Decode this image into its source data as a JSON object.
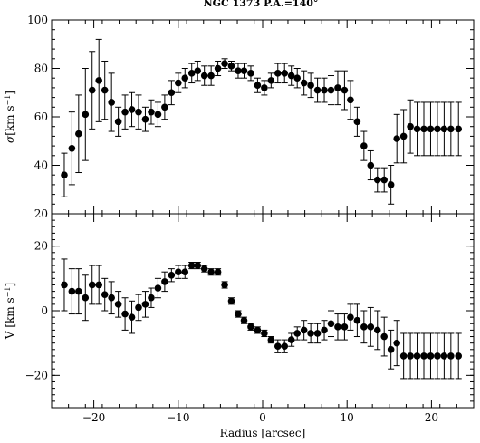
{
  "chart_data": [
    {
      "type": "scatter",
      "panel": "top",
      "title": "NGC 1373   P.A.=140°",
      "ylabel_prefix": "σ",
      "ylabel_unit": "[km s",
      "ylabel_exp": "−1",
      "ylabel_close": "]",
      "xlim": [
        -25,
        25
      ],
      "ylim": [
        20,
        100
      ],
      "yticks": [
        20,
        40,
        60,
        80,
        100
      ],
      "xticks": [
        -20,
        -10,
        0,
        10,
        20
      ],
      "grid": false,
      "series": [
        {
          "x": [
            -23.5,
            -22.6,
            -21.8,
            -21.0,
            -20.2,
            -19.4,
            -18.7,
            -17.9,
            -17.1,
            -16.3,
            -15.5,
            -14.7,
            -13.9,
            -13.2,
            -12.4,
            -11.6,
            -10.8,
            -10.0,
            -9.2,
            -8.4,
            -7.7,
            -6.9,
            -6.1,
            -5.3,
            -4.5,
            -3.7,
            -2.9,
            -2.2,
            -1.4,
            -0.6,
            0.2,
            1.0,
            1.8,
            2.6,
            3.4,
            4.1,
            4.9,
            5.7,
            6.5,
            7.3,
            8.1,
            8.9,
            9.7,
            10.4,
            11.2,
            12.0,
            12.8,
            13.6,
            14.4,
            15.2,
            15.9,
            16.7,
            17.5,
            18.3,
            19.1,
            19.9,
            20.7,
            21.5,
            22.3,
            23.2
          ],
          "y": [
            36,
            47,
            53,
            61,
            71,
            75,
            71,
            66,
            58,
            62,
            63,
            62,
            59,
            62,
            61,
            64,
            70,
            74,
            76,
            78,
            79,
            77,
            77,
            80,
            82,
            81,
            79,
            79,
            78,
            73,
            72,
            75,
            78,
            78,
            77,
            76,
            74,
            73,
            71,
            71,
            71,
            72,
            71,
            67,
            58,
            48,
            40,
            34,
            34,
            32,
            51,
            52,
            56,
            55,
            55,
            55,
            55,
            55,
            55,
            55
          ],
          "yerr": [
            9,
            15,
            16,
            19,
            16,
            17,
            12,
            12,
            6,
            7,
            7,
            7,
            5,
            5,
            5,
            5,
            5,
            4,
            4,
            4,
            4,
            4,
            4,
            3,
            2,
            2,
            3,
            3,
            3,
            3,
            3,
            3,
            4,
            4,
            4,
            4,
            5,
            5,
            5,
            5,
            6,
            7,
            8,
            8,
            6,
            6,
            6,
            5,
            5,
            8,
            10,
            11,
            11,
            11,
            11,
            11,
            11,
            11,
            11,
            11
          ]
        }
      ]
    },
    {
      "type": "scatter",
      "panel": "bottom",
      "xlabel": "Radius [arcsec]",
      "ylabel_prefix": "V ",
      "ylabel_unit": "[km s",
      "ylabel_exp": "−1",
      "ylabel_close": "]",
      "xlim": [
        -25,
        25
      ],
      "ylim": [
        -30,
        30
      ],
      "yticks": [
        -20,
        0,
        20
      ],
      "xticks": [
        -20,
        -10,
        0,
        10,
        20
      ],
      "xtick_labels": [
        "−20",
        "−10",
        "0",
        "10",
        "20"
      ],
      "ytick_labels": [
        "−20",
        "0",
        "20"
      ],
      "grid": false,
      "series": [
        {
          "x": [
            -23.5,
            -22.6,
            -21.8,
            -21.0,
            -20.2,
            -19.4,
            -18.7,
            -17.9,
            -17.1,
            -16.3,
            -15.5,
            -14.7,
            -13.9,
            -13.2,
            -12.4,
            -11.6,
            -10.8,
            -10.0,
            -9.2,
            -8.4,
            -7.7,
            -6.9,
            -6.1,
            -5.3,
            -4.5,
            -3.7,
            -2.9,
            -2.2,
            -1.4,
            -0.6,
            0.2,
            1.0,
            1.8,
            2.6,
            3.4,
            4.1,
            4.9,
            5.7,
            6.5,
            7.3,
            8.1,
            8.9,
            9.7,
            10.4,
            11.2,
            12.0,
            12.8,
            13.6,
            14.4,
            15.2,
            15.9,
            16.7,
            17.5,
            18.3,
            19.1,
            19.9,
            20.7,
            21.5,
            22.3,
            23.2
          ],
          "y": [
            8,
            6,
            6,
            4,
            8,
            8,
            5,
            4,
            2,
            -1,
            -2,
            1,
            2,
            4,
            7,
            9,
            11,
            12,
            12,
            14,
            14,
            13,
            12,
            12,
            8,
            3,
            -1,
            -3,
            -5,
            -6,
            -7,
            -9,
            -11,
            -11,
            -9,
            -7,
            -6,
            -7,
            -7,
            -6,
            -4,
            -5,
            -5,
            -2,
            -3,
            -5,
            -5,
            -6,
            -8,
            -12,
            -10,
            -14,
            -14,
            -14,
            -14,
            -14,
            -14,
            -14,
            -14,
            -14
          ],
          "yerr": [
            8,
            7,
            7,
            7,
            6,
            6,
            5,
            5,
            4,
            5,
            5,
            4,
            4,
            3,
            3,
            3,
            2,
            2,
            2,
            1,
            1,
            1,
            1,
            1,
            1,
            1,
            1,
            1,
            1,
            1,
            1,
            1,
            2,
            2,
            2,
            2,
            3,
            3,
            3,
            3,
            4,
            4,
            4,
            4,
            5,
            5,
            6,
            6,
            6,
            6,
            7,
            7,
            7,
            7,
            7,
            7,
            7,
            7,
            7,
            7
          ]
        }
      ]
    }
  ]
}
